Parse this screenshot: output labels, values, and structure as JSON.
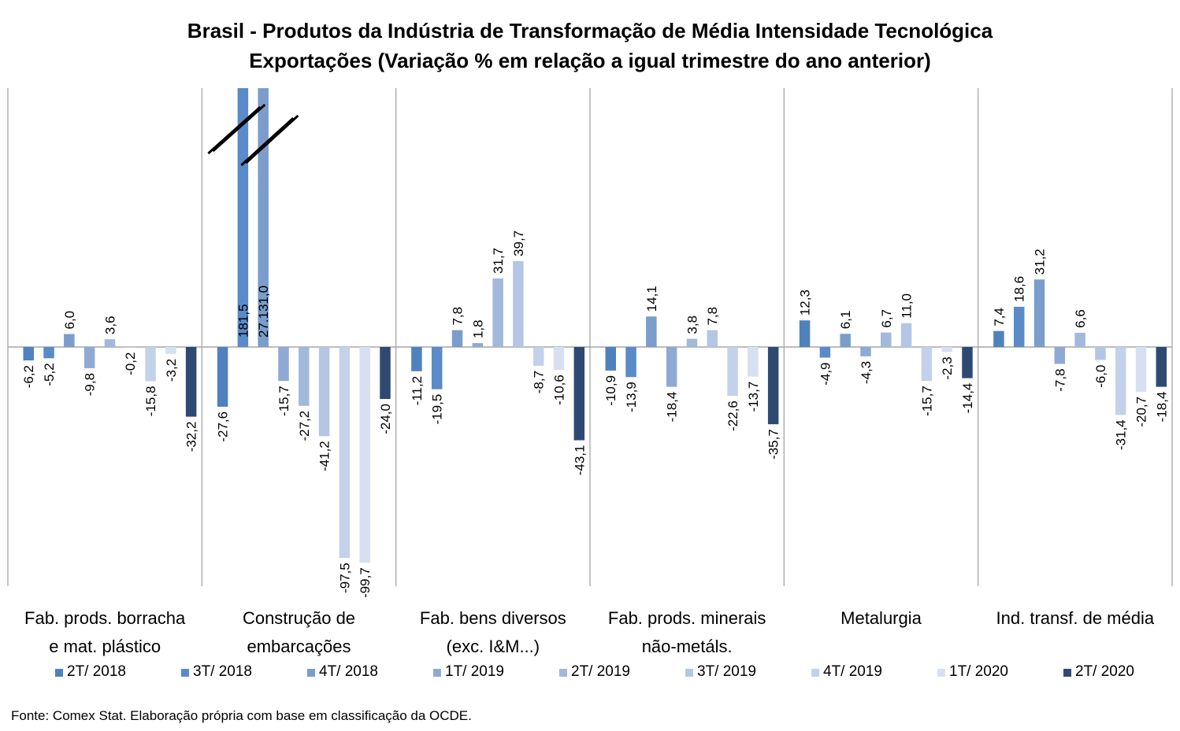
{
  "chart_data": {
    "type": "bar",
    "title": "Brasil - Produtos da Indústria de Transformação de Média Intensidade Tecnológica",
    "subtitle": "Exportações (Variação % em relação a igual trimestre do ano anterior)",
    "categories": [
      [
        "Fab. prods. borracha",
        "e mat. plástico"
      ],
      [
        "Construção de",
        "embarcações"
      ],
      [
        "Fab. bens diversos",
        "(exc. I&M...)"
      ],
      [
        "Fab. prods. minerais",
        "não-metáls."
      ],
      [
        "Metalurgia"
      ],
      [
        "Ind. transf. de média"
      ]
    ],
    "ylim": [
      -100,
      110
    ],
    "axis_break": {
      "category_index": 1,
      "note": "bars truncated (broken axis)"
    },
    "series": [
      {
        "name": "2T/ 2018",
        "color": "#4f81bd",
        "values": [
          -6.2,
          -27.6,
          -11.2,
          -10.9,
          12.3,
          7.4
        ],
        "labels": [
          "-6,2",
          "-27,6",
          "-11,2",
          "-10,9",
          "12,3",
          "7,4"
        ]
      },
      {
        "name": "3T/ 2018",
        "color": "#5a8bc8",
        "values": [
          -5.2,
          181.5,
          -19.5,
          -13.9,
          -4.9,
          18.6
        ],
        "labels": [
          "-5,2",
          "181,5",
          "-19,5",
          "-13,9",
          "-4,9",
          "18,6"
        ]
      },
      {
        "name": "4T/ 2018",
        "color": "#7a9dcb",
        "values": [
          6.0,
          27131.0,
          7.8,
          14.1,
          6.1,
          31.2
        ],
        "labels": [
          "6,0",
          "27.131,0",
          "7,8",
          "14,1",
          "6,1",
          "31,2"
        ]
      },
      {
        "name": "1T/ 2019",
        "color": "#8eaad4",
        "values": [
          -9.8,
          -15.7,
          1.8,
          -18.4,
          -4.3,
          -7.8
        ],
        "labels": [
          "-9,8",
          "-15,7",
          "1,8",
          "-18,4",
          "-4,3",
          "-7,8"
        ]
      },
      {
        "name": "2T/ 2019",
        "color": "#a2b9dc",
        "values": [
          3.6,
          -27.2,
          31.7,
          3.8,
          6.7,
          6.6
        ],
        "labels": [
          "3,6",
          "-27,2",
          "31,7",
          "3,8",
          "6,7",
          "6,6"
        ]
      },
      {
        "name": "3T/ 2019",
        "color": "#b4c6e4",
        "values": [
          -0.2,
          -41.2,
          39.7,
          7.8,
          11.0,
          -6.0
        ],
        "labels": [
          "-0,2",
          "-41,2",
          "39,7",
          "7,8",
          "11,0",
          "-6,0"
        ]
      },
      {
        "name": "4T/ 2019",
        "color": "#c3d2ea",
        "values": [
          -15.8,
          -97.5,
          -8.7,
          -22.6,
          -15.7,
          -31.4
        ],
        "labels": [
          "-15,8",
          "-97,5",
          "-8,7",
          "-22,6",
          "-15,7",
          "-31,4"
        ]
      },
      {
        "name": "1T/ 2020",
        "color": "#d6e0f0",
        "values": [
          -3.2,
          -99.7,
          -10.6,
          -13.7,
          -2.3,
          -20.7
        ],
        "labels": [
          "-3,2",
          "-99,7",
          "-10,6",
          "-13,7",
          "-2,3",
          "-20,7"
        ]
      },
      {
        "name": "2T/ 2020",
        "color": "#2e4a73",
        "values": [
          -32.2,
          -24.0,
          -43.1,
          -35.7,
          -14.4,
          -18.4
        ],
        "labels": [
          "-32,2",
          "-24,0",
          "-43,1",
          "-35,7",
          "-14,4",
          "-18,4"
        ]
      }
    ],
    "grid": false,
    "legend_position": "bottom"
  },
  "source": "Fonte: Comex Stat. Elaboração própria com base em classificação da OCDE."
}
